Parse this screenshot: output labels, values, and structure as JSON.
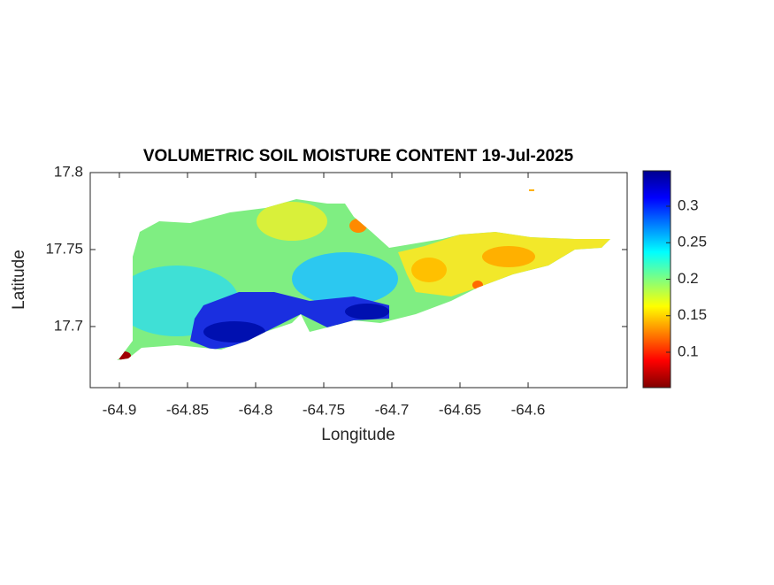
{
  "chart_data": {
    "type": "map",
    "title": "VOLUMETRIC SOIL MOISTURE CONTENT 19-Jul-2025",
    "x_label": "Longitude",
    "y_label": "Latitude",
    "xlim": [
      -64.9214,
      -64.5273
    ],
    "xticks": [
      -64.9,
      -64.85,
      -64.8,
      -64.75,
      -64.7,
      -64.65,
      -64.6
    ],
    "ylim": [
      17.6603,
      17.8
    ],
    "yticks": [
      17.7,
      17.75,
      17.8
    ],
    "colormap": "jet",
    "clim": [
      0.0515,
      0.3485
    ],
    "colorbar_ticks": [
      0.1,
      0.15,
      0.2,
      0.25,
      0.3
    ]
  }
}
